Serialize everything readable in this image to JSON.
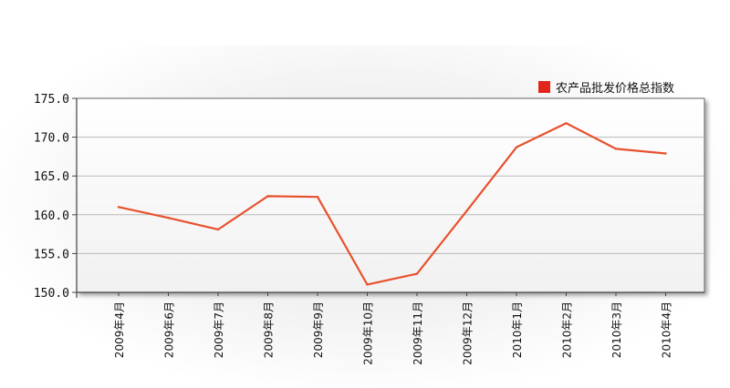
{
  "chart_data": {
    "type": "line",
    "legend_position": "top-right",
    "grid": true,
    "ylim": [
      150.0,
      175.0
    ],
    "yticks": [
      "150.0",
      "155.0",
      "160.0",
      "165.0",
      "170.0",
      "175.0"
    ],
    "categories": [
      "2009年4月",
      "2009年6月",
      "2009年7月",
      "2009年8月",
      "2009年9月",
      "2009年10月",
      "2009年11月",
      "2009年12月",
      "2010年1月",
      "2010年2月",
      "2010年3月",
      "2010年4月"
    ],
    "series": [
      {
        "name": "农产品批发价格总指数",
        "color": "#e8512e",
        "values": [
          161.0,
          159.6,
          158.1,
          162.4,
          162.3,
          151.0,
          152.4,
          160.5,
          168.7,
          171.8,
          168.5,
          167.9
        ]
      }
    ],
    "legend_swatch_color": "#e1251b"
  }
}
